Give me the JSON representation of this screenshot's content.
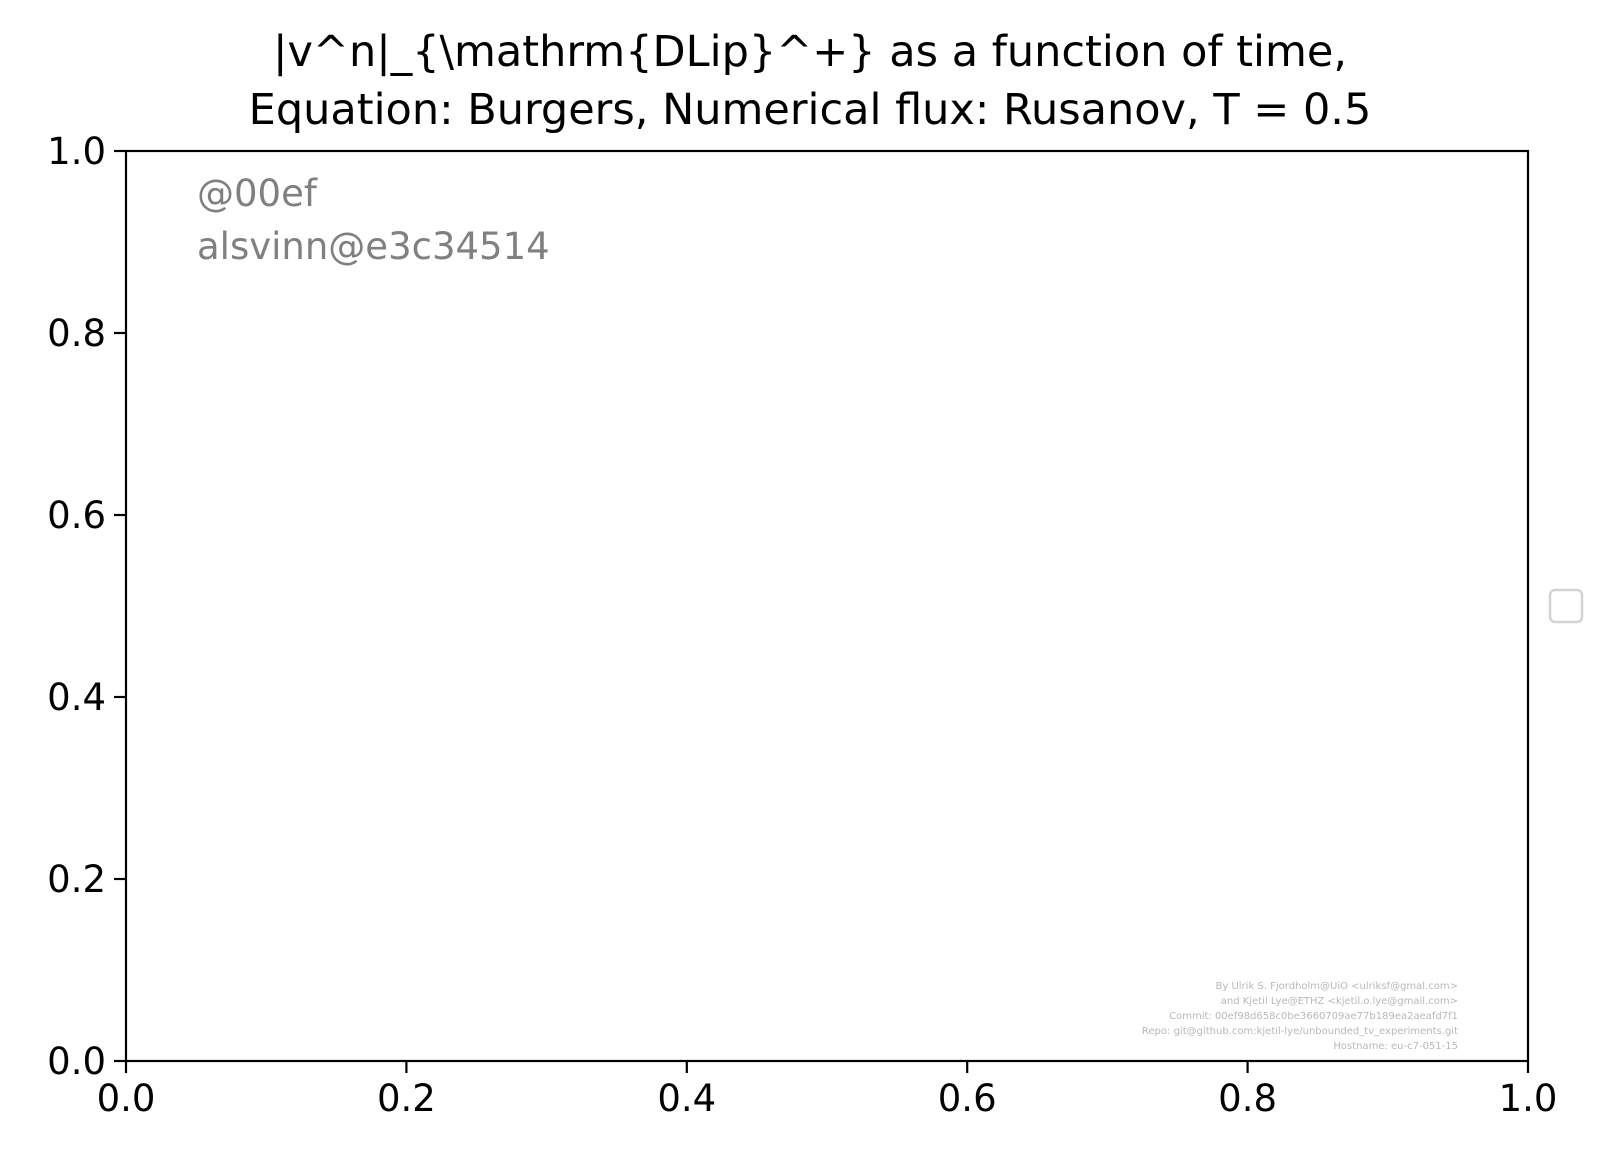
{
  "chart_data": {
    "type": "line",
    "title": "|v^n|_{\\mathrm{DLip}^+} as a function of time,",
    "subtitle": "Equation: Burgers, Numerical flux: Rusanov, T = 0.5",
    "xlabel": "",
    "ylabel": "",
    "xlim": [
      0.0,
      1.0
    ],
    "ylim": [
      0.0,
      1.0
    ],
    "x_ticks": [
      "0.0",
      "0.2",
      "0.4",
      "0.6",
      "0.8",
      "1.0"
    ],
    "y_ticks": [
      "0.0",
      "0.2",
      "0.4",
      "0.6",
      "0.8",
      "1.0"
    ],
    "series": [],
    "grid": false,
    "legend": "center-right outside, empty"
  },
  "watermark": {
    "lines": [
      "@00ef",
      "alsvinn@e3c34514"
    ],
    "color": "#808080"
  },
  "credits": {
    "lines": [
      "By Ulrik S. Fjordholm@UiO <ulriksf@gmal.com>",
      "and Kjetil Lye@ETHZ <kjetil.o.lye@gmail.com>",
      "Commit: 00ef98d658c0be3660709ae77b189ea2aeafd7f1",
      "Repo: git@github.com:kjetil-lye/unbounded_tv_experiments.git",
      "Hostname: eu-c7-051-15"
    ],
    "color": "#b8b8b8"
  },
  "colors": {
    "axis": "#000000",
    "legend_border": "#d4d4d4",
    "background": "#ffffff"
  }
}
